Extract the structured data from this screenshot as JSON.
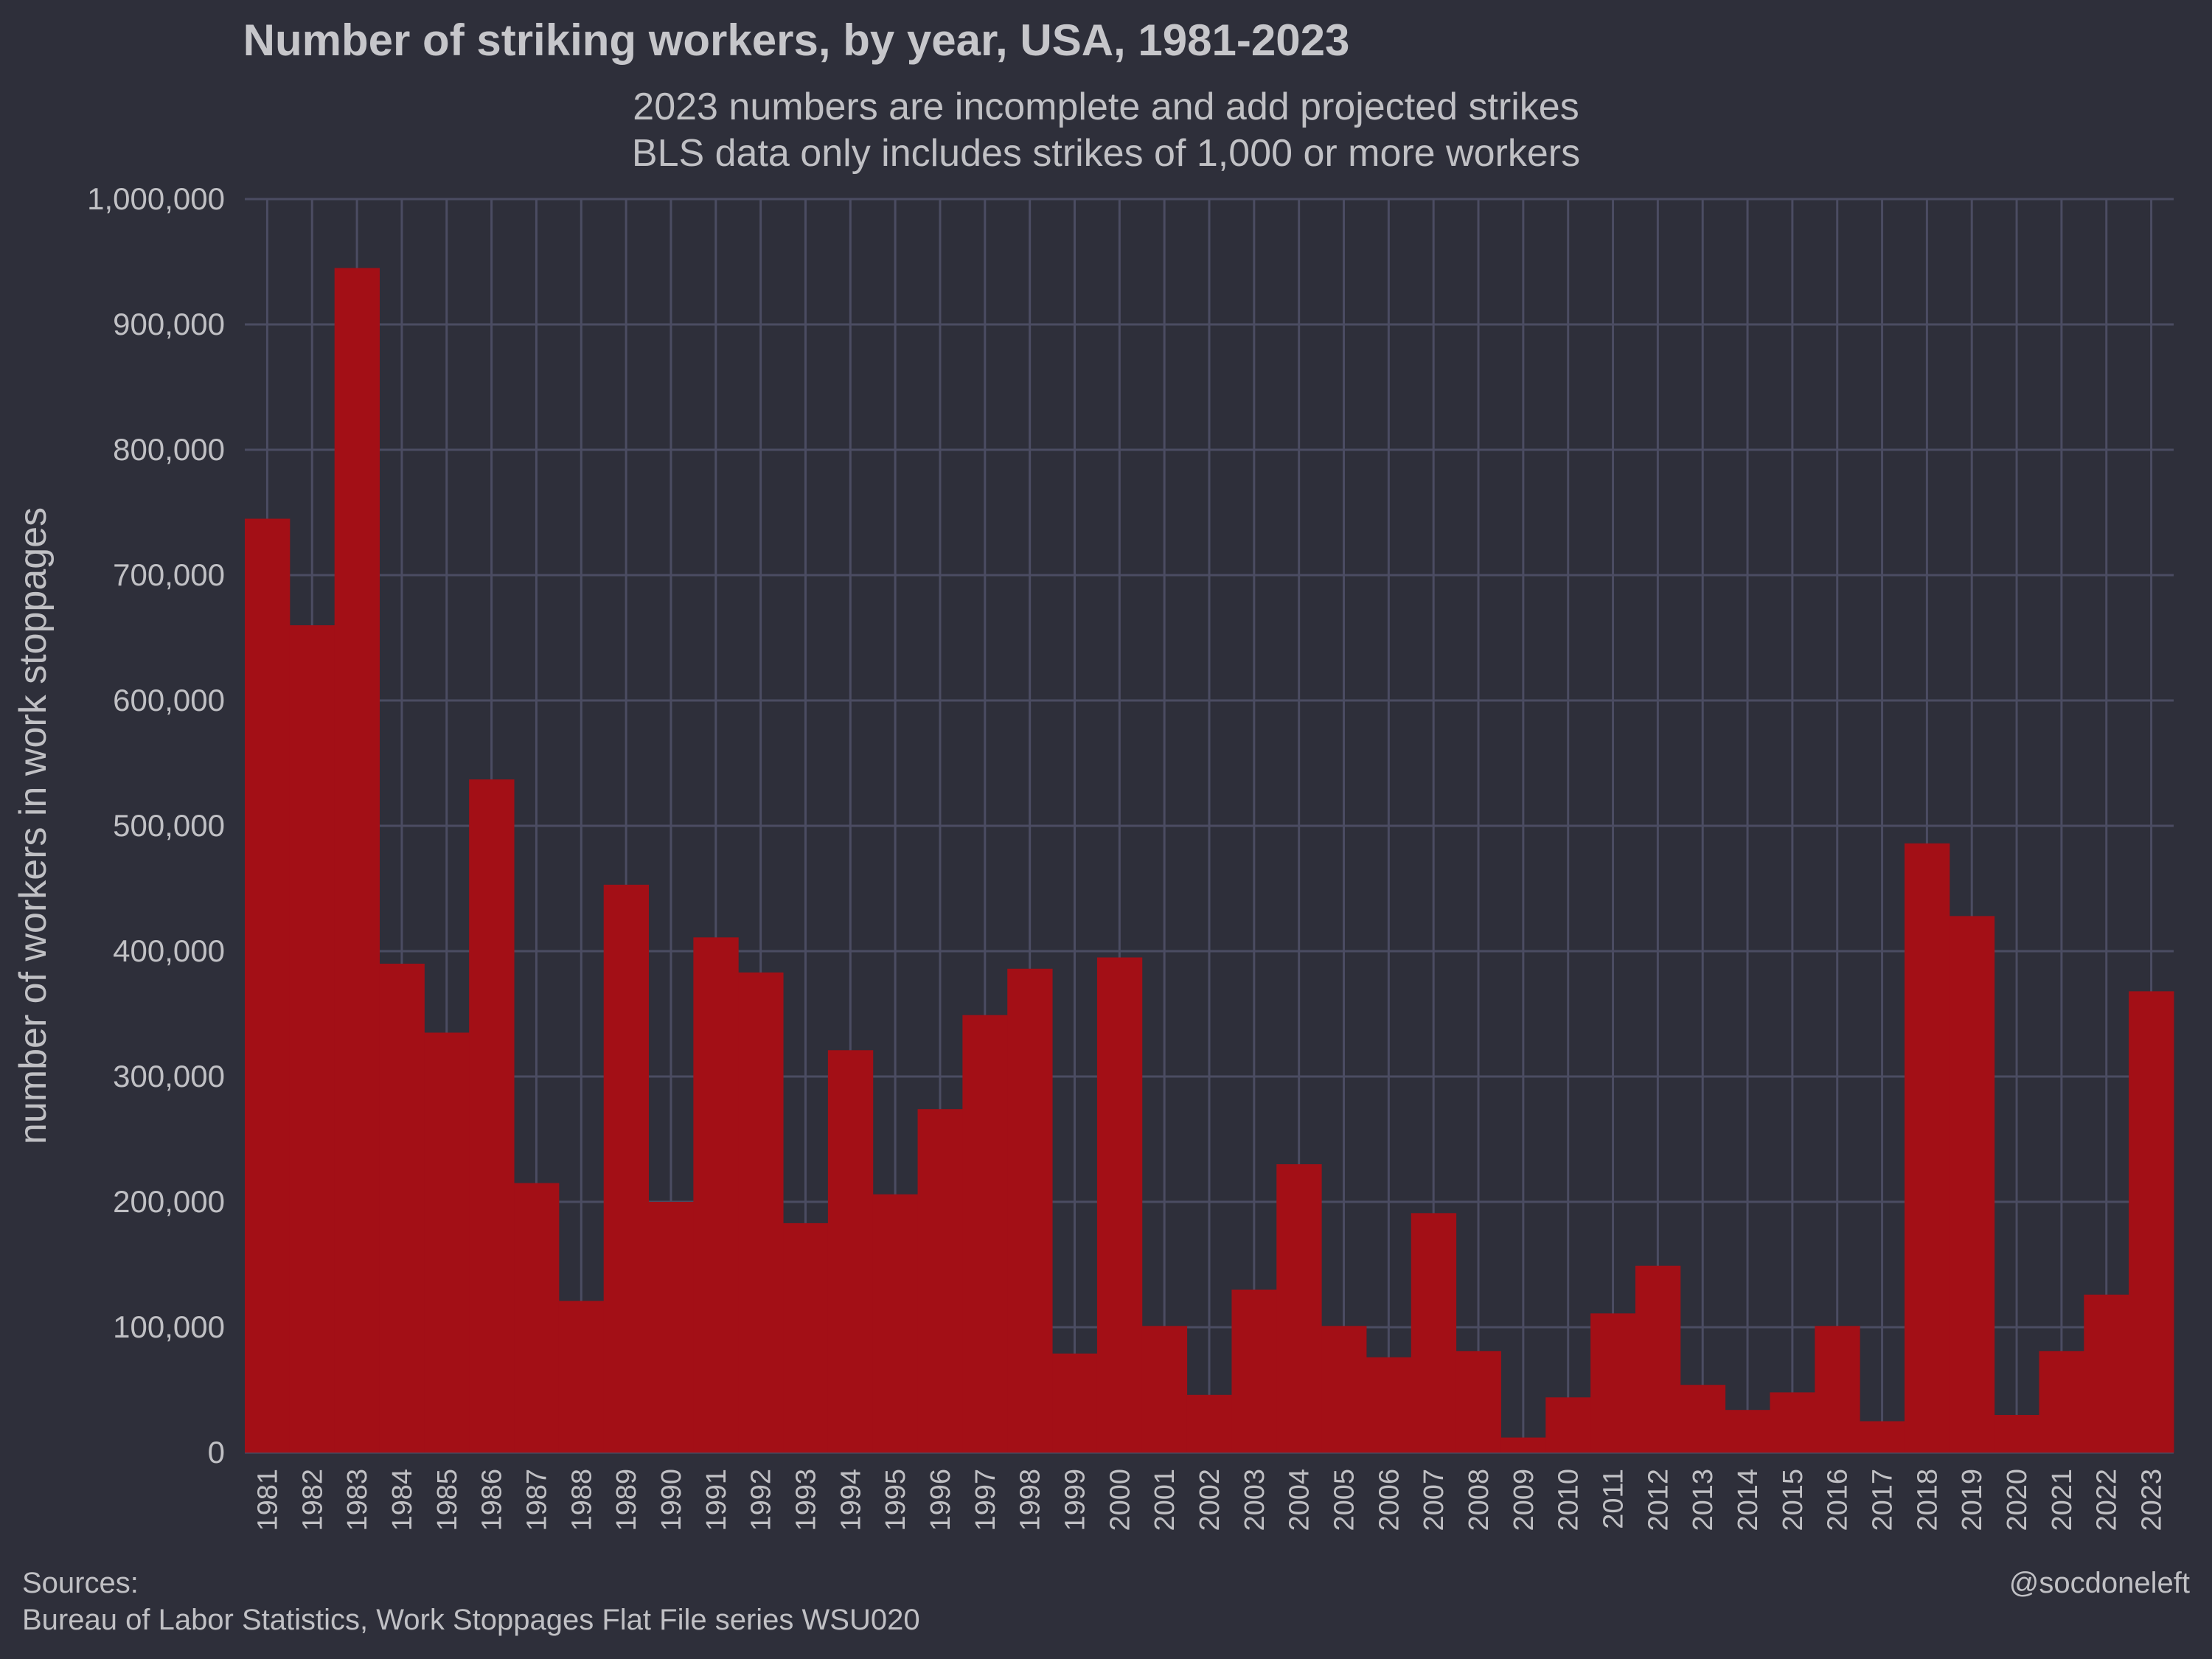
{
  "chart_data": {
    "type": "bar",
    "title": "Number of striking workers, by year, USA, 1981-2023",
    "subtitle_lines": [
      "2023 numbers are incomplete and add projected strikes",
      "BLS data only includes strikes of 1,000 or more workers"
    ],
    "xlabel": "",
    "ylabel": "number of workers in work stoppages",
    "ylim": [
      0,
      1000000
    ],
    "yticks": [
      0,
      100000,
      200000,
      300000,
      400000,
      500000,
      600000,
      700000,
      800000,
      900000,
      1000000
    ],
    "ytick_labels": [
      "0",
      "100,000",
      "200,000",
      "300,000",
      "400,000",
      "500,000",
      "600,000",
      "700,000",
      "800,000",
      "900,000",
      "1,000,000"
    ],
    "grid": true,
    "legend": "none",
    "categories": [
      "1981",
      "1982",
      "1983",
      "1984",
      "1985",
      "1986",
      "1987",
      "1988",
      "1989",
      "1990",
      "1991",
      "1992",
      "1993",
      "1994",
      "1995",
      "1996",
      "1997",
      "1998",
      "1999",
      "2000",
      "2001",
      "2002",
      "2003",
      "2004",
      "2005",
      "2006",
      "2007",
      "2008",
      "2009",
      "2010",
      "2011",
      "2012",
      "2013",
      "2014",
      "2015",
      "2016",
      "2017",
      "2018",
      "2019",
      "2020",
      "2021",
      "2022",
      "2023"
    ],
    "values": [
      745000,
      660000,
      945000,
      390000,
      335000,
      537000,
      215000,
      121000,
      453000,
      200000,
      411000,
      383000,
      183000,
      321000,
      206000,
      274000,
      349000,
      386000,
      79000,
      395000,
      101000,
      46000,
      130000,
      230000,
      101000,
      76000,
      191000,
      81000,
      12000,
      44000,
      111000,
      149000,
      54000,
      34000,
      48000,
      101000,
      25000,
      486000,
      428000,
      30000,
      81000,
      126000,
      368000
    ],
    "colors": {
      "bar": "#a30f16",
      "background": "#2e2f3a",
      "grid": "#4b4c62",
      "text": "#c0c0c4"
    }
  },
  "caption": {
    "sources_label": "Sources:",
    "sources_text": "Bureau of Labor Statistics, Work Stoppages Flat File series WSU020",
    "credit": "@socdoneleft"
  }
}
